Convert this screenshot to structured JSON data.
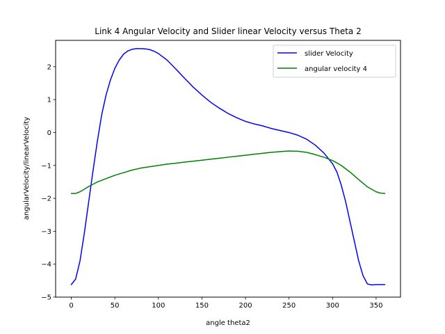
{
  "chart_data": {
    "type": "line",
    "title": "Link 4 Angular Velocity and Slider linear Velocity versus Theta 2",
    "xlabel": "angle theta2",
    "ylabel": "angularVelocity/linearVelocity",
    "xlim": [
      -18,
      378
    ],
    "ylim": [
      -5,
      2.8
    ],
    "xticks": [
      0,
      50,
      100,
      150,
      200,
      250,
      300,
      350
    ],
    "yticks": [
      -5,
      -4,
      -3,
      -2,
      -1,
      0,
      1,
      2
    ],
    "grid": false,
    "legend_position": "top-right",
    "series": [
      {
        "name": "slider Velocity",
        "color": "#0000ff",
        "x": [
          0,
          5,
          10,
          15,
          20,
          25,
          30,
          35,
          40,
          45,
          50,
          55,
          60,
          65,
          70,
          75,
          80,
          85,
          90,
          95,
          100,
          110,
          120,
          130,
          140,
          150,
          160,
          170,
          180,
          190,
          200,
          210,
          220,
          230,
          240,
          250,
          260,
          270,
          280,
          290,
          300,
          305,
          310,
          315,
          320,
          325,
          330,
          335,
          340,
          345,
          350,
          355,
          360
        ],
        "values": [
          -4.62,
          -4.45,
          -3.9,
          -3.05,
          -2.1,
          -1.15,
          -0.25,
          0.55,
          1.15,
          1.6,
          1.95,
          2.2,
          2.38,
          2.48,
          2.53,
          2.55,
          2.55,
          2.54,
          2.52,
          2.47,
          2.4,
          2.2,
          1.93,
          1.65,
          1.38,
          1.14,
          0.92,
          0.74,
          0.58,
          0.45,
          0.34,
          0.26,
          0.2,
          0.12,
          0.06,
          0.0,
          -0.08,
          -0.2,
          -0.38,
          -0.62,
          -0.95,
          -1.2,
          -1.6,
          -2.1,
          -2.7,
          -3.3,
          -3.9,
          -4.35,
          -4.6,
          -4.63,
          -4.62,
          -4.62,
          -4.62
        ]
      },
      {
        "name": "angular velocity 4",
        "color": "#008000",
        "x": [
          0,
          5,
          10,
          15,
          20,
          25,
          30,
          40,
          50,
          60,
          70,
          80,
          90,
          100,
          110,
          120,
          130,
          140,
          150,
          160,
          170,
          180,
          190,
          200,
          210,
          220,
          230,
          240,
          250,
          260,
          270,
          280,
          290,
          300,
          310,
          320,
          330,
          340,
          350,
          355,
          360
        ],
        "values": [
          -1.85,
          -1.85,
          -1.8,
          -1.72,
          -1.64,
          -1.57,
          -1.5,
          -1.4,
          -1.3,
          -1.22,
          -1.14,
          -1.08,
          -1.04,
          -1.0,
          -0.96,
          -0.93,
          -0.9,
          -0.87,
          -0.84,
          -0.81,
          -0.78,
          -0.75,
          -0.72,
          -0.69,
          -0.66,
          -0.63,
          -0.6,
          -0.58,
          -0.56,
          -0.57,
          -0.6,
          -0.67,
          -0.75,
          -0.85,
          -1.0,
          -1.2,
          -1.43,
          -1.65,
          -1.8,
          -1.84,
          -1.85
        ]
      }
    ]
  }
}
